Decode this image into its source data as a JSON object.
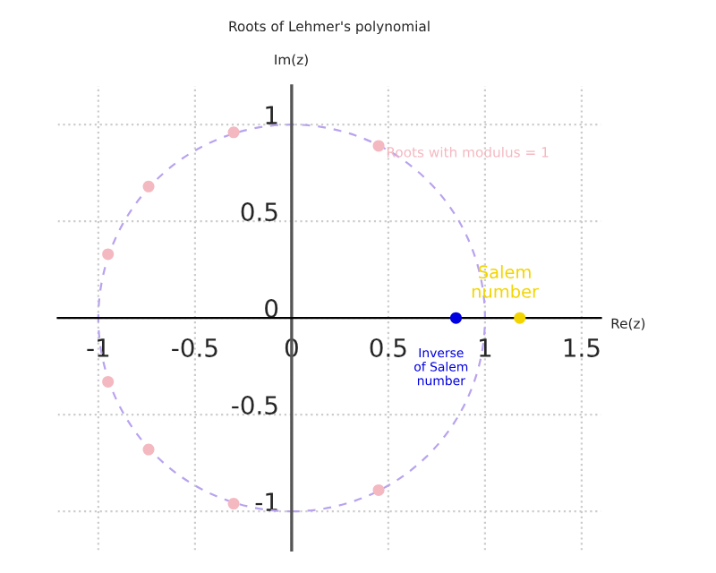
{
  "chart_data": {
    "type": "scatter",
    "title": "Roots of Lehmer's polynomial",
    "xlabel": "Re(z)",
    "ylabel": "Im(z)",
    "xlim": [
      -1.21,
      1.6
    ],
    "ylim": [
      -1.2,
      1.2
    ],
    "xticks": [
      -1,
      -0.5,
      0,
      0.5,
      1,
      1.5
    ],
    "yticks": [
      -1,
      -0.5,
      0,
      0.5,
      1
    ],
    "grid": true,
    "marker": "circle",
    "series": [
      {
        "color": "#f4b8c0",
        "x": [
          0.45,
          -0.3,
          -0.74,
          -0.95,
          -0.95,
          -0.74,
          -0.3,
          0.45
        ],
        "values": [
          0.89,
          0.96,
          0.68,
          0.33,
          -0.33,
          -0.68,
          -0.96,
          -0.89
        ]
      },
      {
        "color": "#f2d500",
        "x": [
          1.18
        ],
        "values": [
          0
        ]
      },
      {
        "color": "#0000e0",
        "x": [
          0.85
        ],
        "values": [
          0
        ]
      }
    ],
    "annotations": [
      {
        "text": "Roots with modulus = 1",
        "x": 0.45,
        "y": 0.89
      },
      {
        "text": "Salem\nnumber",
        "x": 1.18,
        "y": 0
      },
      {
        "text": "Inverse\nof Salem\nnumber",
        "x": 0.85,
        "y": 0
      }
    ]
  }
}
